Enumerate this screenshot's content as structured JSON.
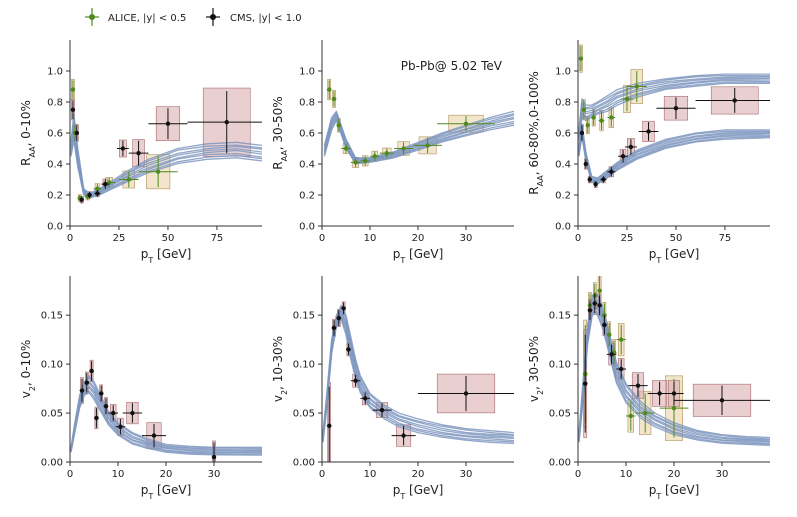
{
  "legend": {
    "alice_label": "ALICE, |y| < 0.5",
    "cms_label": "CMS, |y| < 1.0"
  },
  "colors": {
    "alice": "#4f8a1e",
    "cms": "#111111",
    "band": "#7e96c0",
    "alice_box": "#e7cfa3",
    "cms_box": "#d9a8ac"
  },
  "chart_data": [
    {
      "type": "line",
      "id": "p1",
      "ylabel": "R_AA, 0-10%",
      "xlabel": "p_T [GeV]",
      "xlim": [
        0,
        98
      ],
      "ylim": [
        0,
        1.2
      ],
      "xticks": [
        0,
        25,
        50,
        75
      ],
      "yticks": [
        0,
        0.2,
        0.4,
        0.6,
        0.8,
        1.0
      ],
      "ytick_labels": [
        "0.0",
        "0.2",
        "0.4",
        "0.6",
        "0.8",
        "1.0"
      ],
      "bands": [
        {
          "name": "model",
          "x": [
            0.5,
            2,
            4,
            7,
            10,
            15,
            20,
            30,
            40,
            55,
            70,
            85,
            98
          ],
          "low": [
            0.45,
            0.55,
            0.38,
            0.2,
            0.18,
            0.2,
            0.23,
            0.29,
            0.34,
            0.4,
            0.43,
            0.44,
            0.42
          ],
          "high": [
            0.55,
            0.72,
            0.5,
            0.24,
            0.21,
            0.24,
            0.28,
            0.36,
            0.43,
            0.5,
            0.53,
            0.54,
            0.52
          ]
        }
      ],
      "alice": [
        {
          "x": 1.5,
          "y": 0.88,
          "yerr": 0.06,
          "xerr": 0.5
        },
        {
          "x": 2.5,
          "y": 0.6,
          "yerr": 0.05,
          "xerr": 0.5
        },
        {
          "x": 5,
          "y": 0.18,
          "yerr": 0.02,
          "xerr": 1
        },
        {
          "x": 9,
          "y": 0.19,
          "yerr": 0.02,
          "xerr": 1.5
        },
        {
          "x": 14,
          "y": 0.24,
          "yerr": 0.03,
          "xerr": 2
        },
        {
          "x": 20,
          "y": 0.28,
          "yerr": 0.03,
          "xerr": 3
        },
        {
          "x": 30,
          "y": 0.3,
          "yerr": 0.05,
          "xerr": 5
        },
        {
          "x": 45,
          "y": 0.35,
          "yerr": 0.1,
          "xerr": 10
        }
      ],
      "cms": [
        {
          "x": 1.5,
          "y": 0.75,
          "yerr": 0.06,
          "xerr": 0.5
        },
        {
          "x": 3.5,
          "y": 0.6,
          "yerr": 0.05,
          "xerr": 0.5
        },
        {
          "x": 6,
          "y": 0.17,
          "yerr": 0.02,
          "xerr": 1
        },
        {
          "x": 10,
          "y": 0.2,
          "yerr": 0.02,
          "xerr": 1
        },
        {
          "x": 14,
          "y": 0.21,
          "yerr": 0.02,
          "xerr": 1.5
        },
        {
          "x": 18,
          "y": 0.27,
          "yerr": 0.03,
          "xerr": 2
        },
        {
          "x": 27,
          "y": 0.5,
          "yerr": 0.05,
          "xerr": 3
        },
        {
          "x": 35,
          "y": 0.47,
          "yerr": 0.08,
          "xerr": 5
        },
        {
          "x": 50,
          "y": 0.66,
          "yerr": 0.1,
          "xerr": 10
        },
        {
          "x": 80,
          "y": 0.67,
          "yerr": 0.2,
          "xerr": 20
        }
      ]
    },
    {
      "type": "line",
      "id": "p2",
      "ylabel": "R_AA, 30-50%",
      "xlabel": "p_T [GeV]",
      "xlim": [
        0,
        40
      ],
      "ylim": [
        0,
        1.2
      ],
      "xticks": [
        0,
        10,
        20,
        30
      ],
      "yticks": [
        0,
        0.2,
        0.4,
        0.6,
        0.8,
        1.0
      ],
      "ytick_labels": [
        "0.0",
        "0.2",
        "0.4",
        "0.6",
        "0.8",
        "1.0"
      ],
      "annotation": "Pb-Pb@ 5.02 TeV",
      "bands": [
        {
          "name": "model",
          "x": [
            0.5,
            2,
            3,
            5,
            7,
            10,
            15,
            20,
            25,
            30,
            35,
            40
          ],
          "low": [
            0.45,
            0.62,
            0.68,
            0.5,
            0.4,
            0.41,
            0.44,
            0.49,
            0.54,
            0.58,
            0.62,
            0.65
          ],
          "high": [
            0.52,
            0.7,
            0.74,
            0.56,
            0.44,
            0.44,
            0.48,
            0.54,
            0.6,
            0.65,
            0.7,
            0.74
          ]
        }
      ],
      "alice": [
        {
          "x": 1.5,
          "y": 0.88,
          "yerr": 0.06,
          "xerr": 0.5
        },
        {
          "x": 2.5,
          "y": 0.82,
          "yerr": 0.05,
          "xerr": 0.5
        },
        {
          "x": 3.5,
          "y": 0.65,
          "yerr": 0.04,
          "xerr": 0.5
        },
        {
          "x": 5,
          "y": 0.5,
          "yerr": 0.03,
          "xerr": 1
        },
        {
          "x": 7,
          "y": 0.41,
          "yerr": 0.03,
          "xerr": 1
        },
        {
          "x": 9,
          "y": 0.42,
          "yerr": 0.03,
          "xerr": 1
        },
        {
          "x": 11,
          "y": 0.45,
          "yerr": 0.03,
          "xerr": 1
        },
        {
          "x": 13.5,
          "y": 0.47,
          "yerr": 0.03,
          "xerr": 1.5
        },
        {
          "x": 17,
          "y": 0.5,
          "yerr": 0.04,
          "xerr": 2
        },
        {
          "x": 22,
          "y": 0.52,
          "yerr": 0.05,
          "xerr": 3
        },
        {
          "x": 30,
          "y": 0.66,
          "yerr": 0.05,
          "xerr": 6
        }
      ],
      "cms": []
    },
    {
      "type": "line",
      "id": "p3",
      "ylabel": "R_AA, 60-80%,0-100%",
      "xlabel": "p_T [GeV]",
      "xlim": [
        0,
        98
      ],
      "ylim": [
        0,
        1.2
      ],
      "xticks": [
        0,
        25,
        50,
        75
      ],
      "yticks": [
        0,
        0.2,
        0.4,
        0.6,
        0.8,
        1.0
      ],
      "ytick_labels": [
        "0.0",
        "0.2",
        "0.4",
        "0.6",
        "0.8",
        "1.0"
      ],
      "bands": [
        {
          "name": "model-60-80",
          "x": [
            0.5,
            2,
            4,
            7,
            10,
            15,
            20,
            30,
            45,
            60,
            75,
            98
          ],
          "low": [
            0.55,
            0.7,
            0.68,
            0.7,
            0.72,
            0.74,
            0.78,
            0.83,
            0.88,
            0.9,
            0.92,
            0.92
          ],
          "high": [
            0.62,
            0.82,
            0.78,
            0.78,
            0.8,
            0.84,
            0.88,
            0.92,
            0.95,
            0.97,
            0.98,
            0.98
          ]
        },
        {
          "name": "model-0-100",
          "x": [
            0.5,
            2,
            4,
            7,
            10,
            15,
            20,
            30,
            45,
            60,
            75,
            98
          ],
          "low": [
            0.45,
            0.58,
            0.42,
            0.28,
            0.27,
            0.31,
            0.36,
            0.43,
            0.5,
            0.54,
            0.56,
            0.57
          ],
          "high": [
            0.52,
            0.66,
            0.48,
            0.32,
            0.31,
            0.36,
            0.41,
            0.49,
            0.56,
            0.6,
            0.62,
            0.62
          ]
        }
      ],
      "alice": [
        {
          "x": 1.5,
          "y": 1.08,
          "yerr": 0.08,
          "xerr": 0.5
        },
        {
          "x": 3,
          "y": 0.75,
          "yerr": 0.06,
          "xerr": 0.5
        },
        {
          "x": 5,
          "y": 0.65,
          "yerr": 0.05,
          "xerr": 1
        },
        {
          "x": 8,
          "y": 0.7,
          "yerr": 0.05,
          "xerr": 1
        },
        {
          "x": 12,
          "y": 0.68,
          "yerr": 0.06,
          "xerr": 1.5
        },
        {
          "x": 17,
          "y": 0.7,
          "yerr": 0.06,
          "xerr": 2
        },
        {
          "x": 25,
          "y": 0.82,
          "yerr": 0.08,
          "xerr": 3
        },
        {
          "x": 30,
          "y": 0.9,
          "yerr": 0.1,
          "xerr": 5
        }
      ],
      "cms": [
        {
          "x": 2,
          "y": 0.6,
          "yerr": 0.05,
          "xerr": 0.5
        },
        {
          "x": 4,
          "y": 0.4,
          "yerr": 0.03,
          "xerr": 0.5
        },
        {
          "x": 6,
          "y": 0.3,
          "yerr": 0.02,
          "xerr": 1
        },
        {
          "x": 9,
          "y": 0.27,
          "yerr": 0.02,
          "xerr": 1
        },
        {
          "x": 13,
          "y": 0.3,
          "yerr": 0.02,
          "xerr": 1.5
        },
        {
          "x": 17,
          "y": 0.35,
          "yerr": 0.03,
          "xerr": 2
        },
        {
          "x": 23,
          "y": 0.45,
          "yerr": 0.04,
          "xerr": 2.5
        },
        {
          "x": 27,
          "y": 0.51,
          "yerr": 0.05,
          "xerr": 3
        },
        {
          "x": 36,
          "y": 0.61,
          "yerr": 0.06,
          "xerr": 5
        },
        {
          "x": 50,
          "y": 0.76,
          "yerr": 0.07,
          "xerr": 10
        },
        {
          "x": 80,
          "y": 0.81,
          "yerr": 0.08,
          "xerr": 20
        }
      ]
    },
    {
      "type": "line",
      "id": "p4",
      "ylabel": "v_2, 0-10%",
      "xlabel": "p_T [GeV]",
      "xlim": [
        0,
        40
      ],
      "ylim": [
        0,
        0.19
      ],
      "xticks": [
        0,
        10,
        20,
        30
      ],
      "yticks": [
        0,
        0.05,
        0.1,
        0.15
      ],
      "ytick_labels": [
        "0.00",
        "0.05",
        "0.10",
        "0.15"
      ],
      "bands": [
        {
          "name": "model",
          "x": [
            0.2,
            1,
            2,
            3,
            4,
            5,
            6,
            8,
            10,
            13,
            16,
            20,
            25,
            30,
            35,
            40
          ],
          "low": [
            0.01,
            0.03,
            0.055,
            0.068,
            0.07,
            0.064,
            0.055,
            0.038,
            0.027,
            0.018,
            0.014,
            0.01,
            0.008,
            0.007,
            0.007,
            0.007
          ],
          "high": [
            0.015,
            0.04,
            0.068,
            0.082,
            0.088,
            0.082,
            0.072,
            0.052,
            0.04,
            0.03,
            0.024,
            0.018,
            0.016,
            0.015,
            0.015,
            0.015
          ]
        }
      ],
      "alice": [],
      "cms": [
        {
          "x": 2.5,
          "y": 0.073,
          "yerr": 0.012,
          "xerr": 0.5
        },
        {
          "x": 3.5,
          "y": 0.081,
          "yerr": 0.01,
          "xerr": 0.5
        },
        {
          "x": 4.5,
          "y": 0.093,
          "yerr": 0.01,
          "xerr": 0.5
        },
        {
          "x": 5.5,
          "y": 0.045,
          "yerr": 0.01,
          "xerr": 0.5
        },
        {
          "x": 6.5,
          "y": 0.07,
          "yerr": 0.008,
          "xerr": 0.5
        },
        {
          "x": 7.5,
          "y": 0.057,
          "yerr": 0.008,
          "xerr": 0.5
        },
        {
          "x": 9,
          "y": 0.05,
          "yerr": 0.008,
          "xerr": 1
        },
        {
          "x": 10.5,
          "y": 0.036,
          "yerr": 0.008,
          "xerr": 1
        },
        {
          "x": 13,
          "y": 0.05,
          "yerr": 0.01,
          "xerr": 2
        },
        {
          "x": 17.5,
          "y": 0.027,
          "yerr": 0.012,
          "xerr": 2.5
        },
        {
          "x": 30,
          "y": 0.005,
          "yerr": 0.015,
          "xerr": 0
        }
      ]
    },
    {
      "type": "line",
      "id": "p5",
      "ylabel": "v_2, 10-30%",
      "xlabel": "p_T [GeV]",
      "xlim": [
        0,
        40
      ],
      "ylim": [
        0,
        0.19
      ],
      "xticks": [
        0,
        10,
        20,
        30
      ],
      "yticks": [
        0,
        0.05,
        0.1,
        0.15
      ],
      "ytick_labels": [
        "0.00",
        "0.05",
        "0.10",
        "0.15"
      ],
      "bands": [
        {
          "name": "model",
          "x": [
            0.2,
            1,
            2,
            3,
            4,
            5,
            6,
            7,
            8,
            10,
            13,
            16,
            20,
            25,
            30,
            35,
            40
          ],
          "low": [
            0.02,
            0.055,
            0.11,
            0.138,
            0.145,
            0.13,
            0.105,
            0.085,
            0.07,
            0.055,
            0.044,
            0.036,
            0.03,
            0.025,
            0.022,
            0.02,
            0.019
          ],
          "high": [
            0.03,
            0.07,
            0.125,
            0.15,
            0.16,
            0.15,
            0.128,
            0.105,
            0.088,
            0.07,
            0.058,
            0.05,
            0.044,
            0.038,
            0.034,
            0.032,
            0.03
          ]
        }
      ],
      "alice": [],
      "cms": [
        {
          "x": 1.5,
          "y": 0.037,
          "yerr": 0.04,
          "xerr": 0.5
        },
        {
          "x": 2.5,
          "y": 0.137,
          "yerr": 0.008,
          "xerr": 0.5
        },
        {
          "x": 3.5,
          "y": 0.147,
          "yerr": 0.008,
          "xerr": 0.5
        },
        {
          "x": 4.5,
          "y": 0.157,
          "yerr": 0.006,
          "xerr": 0.5
        },
        {
          "x": 5.5,
          "y": 0.115,
          "yerr": 0.006,
          "xerr": 0.5
        },
        {
          "x": 7,
          "y": 0.083,
          "yerr": 0.006,
          "xerr": 1
        },
        {
          "x": 9,
          "y": 0.065,
          "yerr": 0.006,
          "xerr": 1
        },
        {
          "x": 12.5,
          "y": 0.053,
          "yerr": 0.007,
          "xerr": 2
        },
        {
          "x": 17,
          "y": 0.027,
          "yerr": 0.01,
          "xerr": 2.5
        },
        {
          "x": 30,
          "y": 0.07,
          "yerr": 0.018,
          "xerr": 10
        }
      ]
    },
    {
      "type": "line",
      "id": "p6",
      "ylabel": "v_2, 30-50%",
      "xlabel": "p_T [GeV]",
      "xlim": [
        0,
        40
      ],
      "ylim": [
        0,
        0.19
      ],
      "xticks": [
        0,
        10,
        20,
        30
      ],
      "yticks": [
        0,
        0.05,
        0.1,
        0.15
      ],
      "ytick_labels": [
        "0.00",
        "0.05",
        "0.10",
        "0.15"
      ],
      "bands": [
        {
          "name": "model",
          "x": [
            0.2,
            1,
            2,
            3,
            4,
            5,
            6,
            7,
            8,
            10,
            13,
            16,
            20,
            25,
            30,
            35,
            40
          ],
          "low": [
            0.02,
            0.06,
            0.12,
            0.15,
            0.15,
            0.138,
            0.12,
            0.1,
            0.08,
            0.06,
            0.045,
            0.036,
            0.028,
            0.022,
            0.019,
            0.018,
            0.017
          ],
          "high": [
            0.03,
            0.08,
            0.14,
            0.17,
            0.172,
            0.16,
            0.142,
            0.122,
            0.102,
            0.08,
            0.062,
            0.05,
            0.04,
            0.032,
            0.028,
            0.026,
            0.025
          ]
        }
      ],
      "alice": [
        {
          "x": 1.5,
          "y": 0.09,
          "yerr": 0.05,
          "xerr": 0.5
        },
        {
          "x": 2.5,
          "y": 0.16,
          "yerr": 0.012,
          "xerr": 0.5
        },
        {
          "x": 3.5,
          "y": 0.17,
          "yerr": 0.012,
          "xerr": 0.5
        },
        {
          "x": 4.5,
          "y": 0.175,
          "yerr": 0.015,
          "xerr": 0.5
        },
        {
          "x": 5.5,
          "y": 0.15,
          "yerr": 0.012,
          "xerr": 0.5
        },
        {
          "x": 6.5,
          "y": 0.13,
          "yerr": 0.012,
          "xerr": 0.5
        },
        {
          "x": 7.5,
          "y": 0.112,
          "yerr": 0.012,
          "xerr": 0.5
        },
        {
          "x": 9,
          "y": 0.125,
          "yerr": 0.015,
          "xerr": 1
        },
        {
          "x": 11,
          "y": 0.047,
          "yerr": 0.015,
          "xerr": 1
        },
        {
          "x": 14,
          "y": 0.05,
          "yerr": 0.02,
          "xerr": 2
        },
        {
          "x": 20,
          "y": 0.055,
          "yerr": 0.03,
          "xerr": 3
        }
      ],
      "cms": [
        {
          "x": 1.5,
          "y": 0.08,
          "yerr": 0.05,
          "xerr": 0.5
        },
        {
          "x": 2.5,
          "y": 0.155,
          "yerr": 0.01,
          "xerr": 0.5
        },
        {
          "x": 3.5,
          "y": 0.162,
          "yerr": 0.01,
          "xerr": 0.5
        },
        {
          "x": 4.5,
          "y": 0.16,
          "yerr": 0.01,
          "xerr": 0.5
        },
        {
          "x": 5.5,
          "y": 0.14,
          "yerr": 0.01,
          "xerr": 0.5
        },
        {
          "x": 7,
          "y": 0.11,
          "yerr": 0.01,
          "xerr": 1
        },
        {
          "x": 9,
          "y": 0.095,
          "yerr": 0.01,
          "xerr": 1
        },
        {
          "x": 12.5,
          "y": 0.078,
          "yerr": 0.012,
          "xerr": 2
        },
        {
          "x": 17,
          "y": 0.07,
          "yerr": 0.012,
          "xerr": 2.5
        },
        {
          "x": 20,
          "y": 0.07,
          "yerr": 0.012,
          "xerr": 2
        },
        {
          "x": 30,
          "y": 0.063,
          "yerr": 0.015,
          "xerr": 10
        }
      ]
    }
  ]
}
